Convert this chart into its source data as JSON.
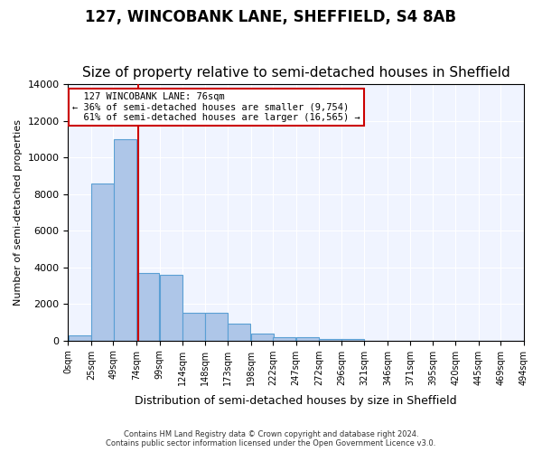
{
  "title": "127, WINCOBANK LANE, SHEFFIELD, S4 8AB",
  "subtitle": "Size of property relative to semi-detached houses in Sheffield",
  "xlabel": "Distribution of semi-detached houses by size in Sheffield",
  "ylabel": "Number of semi-detached properties",
  "footer_line1": "Contains HM Land Registry data © Crown copyright and database right 2024.",
  "footer_line2": "Contains public sector information licensed under the Open Government Licence v3.0.",
  "property_size": 76,
  "property_label": "127 WINCOBANK LANE: 76sqm",
  "smaller_pct": 36,
  "smaller_count": "9,754",
  "larger_pct": 61,
  "larger_count": "16,565",
  "bin_edges": [
    0,
    25,
    49,
    74,
    99,
    124,
    148,
    173,
    198,
    222,
    247,
    272,
    296,
    321,
    346,
    371,
    395,
    420,
    445,
    469,
    494
  ],
  "bin_labels": [
    "0sqm",
    "25sqm",
    "49sqm",
    "74sqm",
    "99sqm",
    "124sqm",
    "148sqm",
    "173sqm",
    "198sqm",
    "222sqm",
    "247sqm",
    "272sqm",
    "296sqm",
    "321sqm",
    "346sqm",
    "371sqm",
    "395sqm",
    "420sqm",
    "445sqm",
    "469sqm",
    "494sqm"
  ],
  "bar_heights": [
    300,
    8600,
    11000,
    3700,
    3600,
    1500,
    1500,
    900,
    400,
    200,
    170,
    100,
    80,
    0,
    0,
    0,
    0,
    0,
    0,
    0
  ],
  "bar_color": "#aec6e8",
  "bar_edge_color": "#5a9fd4",
  "marker_line_color": "#cc0000",
  "marker_bin_index": 3,
  "ylim": [
    0,
    14000
  ],
  "yticks": [
    0,
    2000,
    4000,
    6000,
    8000,
    10000,
    12000,
    14000
  ],
  "annotation_box_color": "#cc0000",
  "bg_color": "#f0f4ff",
  "title_fontsize": 12,
  "subtitle_fontsize": 11
}
